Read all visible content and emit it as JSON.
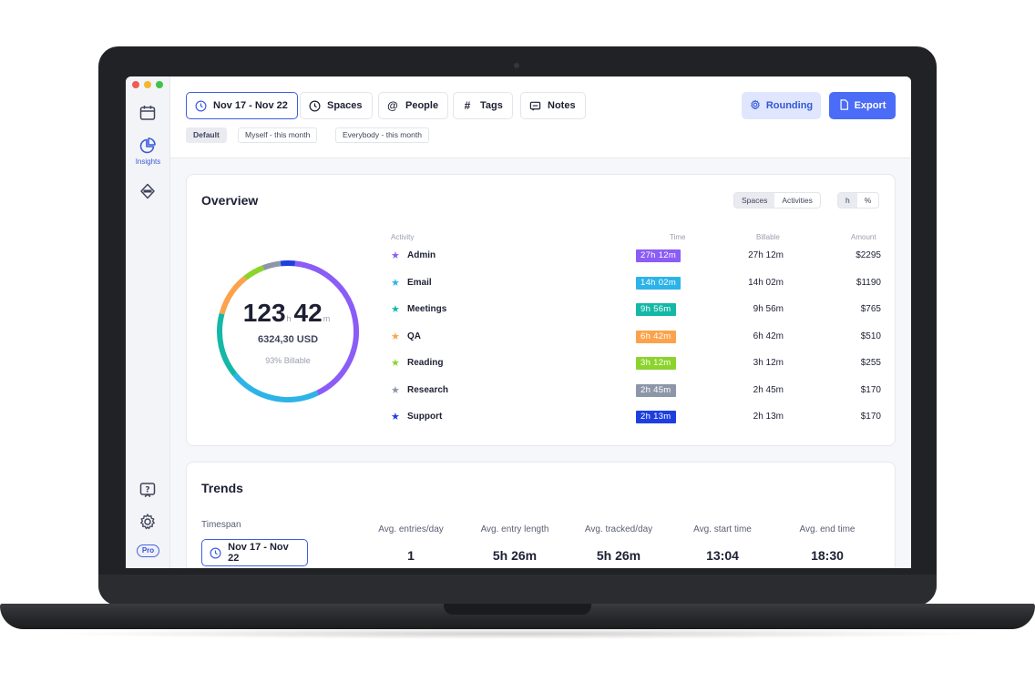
{
  "topbar": {
    "date_range": "Nov 17 - Nov 22",
    "filters": [
      "Spaces",
      "People",
      "Tags",
      "Notes"
    ],
    "rounding_label": "Rounding",
    "export_label": "Export",
    "presets": [
      "Default",
      "Myself - this month",
      "Everybody - this month"
    ]
  },
  "sidebar": {
    "insights_label": "Insights",
    "pro_label": "Pro"
  },
  "overview": {
    "title": "Overview",
    "toggle_group": [
      "Spaces",
      "Activities"
    ],
    "unit_toggle": [
      "h",
      "%"
    ],
    "columns": {
      "activity": "Activity",
      "time": "Time",
      "billable": "Billable",
      "amount": "Amount"
    },
    "total_hours": "123",
    "total_hours_unit": "h",
    "total_minutes": "42",
    "total_minutes_unit": "m",
    "total_amount": "6324,30 USD",
    "billable_pct": "93% Billable",
    "activities": [
      {
        "name": "Admin",
        "time": "27h 12m",
        "billable": "27h 12m",
        "amount": "$2295",
        "color": "#8b5cf6"
      },
      {
        "name": "Email",
        "time": "14h 02m",
        "billable": "14h 02m",
        "amount": "$1190",
        "color": "#2cb3e8"
      },
      {
        "name": "Meetings",
        "time": "9h 56m",
        "billable": "9h 56m",
        "amount": "$765",
        "color": "#14b8a6"
      },
      {
        "name": "QA",
        "time": "6h 42m",
        "billable": "6h 42m",
        "amount": "$510",
        "color": "#fba34c"
      },
      {
        "name": "Reading",
        "time": "3h 12m",
        "billable": "3h 12m",
        "amount": "$255",
        "color": "#8bd42c"
      },
      {
        "name": "Research",
        "time": "2h 45m",
        "billable": "2h 45m",
        "amount": "$170",
        "color": "#8d96a8"
      },
      {
        "name": "Support",
        "time": "2h 13m",
        "billable": "2h 13m",
        "amount": "$170",
        "color": "#1e3fe0"
      }
    ],
    "donut_minutes": [
      1632,
      842,
      596,
      402,
      192,
      165,
      133
    ]
  },
  "trends": {
    "title": "Trends",
    "timespan_label": "Timespan",
    "timespan_value": "Nov 17 - Nov 22",
    "metrics": [
      {
        "label": "Avg. entries/day",
        "value": "1"
      },
      {
        "label": "Avg. entry length",
        "value": "5h 26m"
      },
      {
        "label": "Avg. tracked/day",
        "value": "5h 26m"
      },
      {
        "label": "Avg. start time",
        "value": "13:04"
      },
      {
        "label": "Avg. end time",
        "value": "18:30"
      }
    ]
  }
}
